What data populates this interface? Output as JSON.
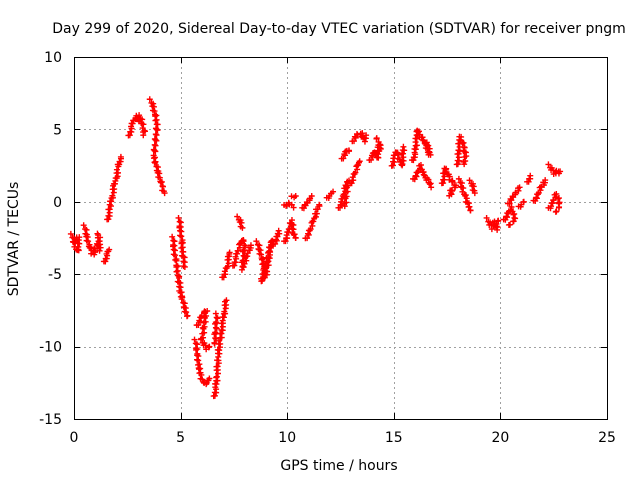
{
  "chart_data": {
    "type": "scatter",
    "title": "Day 299 of 2020, Sidereal Day-to-day VTEC variation (SDTVAR) for receiver pngm",
    "xlabel": "GPS time / hours",
    "ylabel": "SDTVAR / TECUs",
    "xlim": [
      0,
      25
    ],
    "ylim": [
      -15,
      10
    ],
    "xticks": [
      0,
      5,
      10,
      15,
      20,
      25
    ],
    "yticks": [
      -15,
      -10,
      -5,
      0,
      5,
      10
    ],
    "xtick_labels": [
      "0",
      "5",
      "10",
      "15",
      "20",
      "25"
    ],
    "ytick_labels": [
      "-15",
      "-10",
      "-5",
      "0",
      "5",
      "10"
    ],
    "grid": true,
    "marker": "+",
    "color": "#ff0000",
    "series": [
      {
        "name": "SDTVAR",
        "segments": [
          [
            [
              -0.1,
              -2.3
            ],
            [
              0.0,
              -2.8
            ],
            [
              0.1,
              -3.2
            ],
            [
              0.2,
              -3.4
            ],
            [
              0.2,
              -2.4
            ],
            [
              0.1,
              -2.6
            ]
          ],
          [
            [
              0.5,
              -1.7
            ],
            [
              0.6,
              -2.4
            ],
            [
              0.7,
              -3.0
            ],
            [
              0.8,
              -3.4
            ],
            [
              0.9,
              -3.6
            ],
            [
              1.0,
              -3.3
            ],
            [
              1.1,
              -2.9
            ],
            [
              1.2,
              -3.3
            ],
            [
              1.2,
              -2.5
            ],
            [
              1.1,
              -2.2
            ]
          ],
          [
            [
              1.45,
              -4.2
            ],
            [
              1.55,
              -3.6
            ],
            [
              1.65,
              -3.3
            ]
          ],
          [
            [
              1.6,
              -1.3
            ],
            [
              1.7,
              -0.2
            ],
            [
              1.8,
              0.5
            ],
            [
              1.9,
              1.2
            ],
            [
              2.0,
              1.8
            ],
            [
              2.1,
              2.5
            ],
            [
              2.2,
              3.1
            ]
          ],
          [
            [
              2.6,
              4.5
            ],
            [
              2.7,
              5.2
            ],
            [
              2.8,
              5.7
            ],
            [
              2.9,
              5.9
            ],
            [
              3.0,
              5.6
            ],
            [
              3.1,
              5.9
            ],
            [
              3.2,
              5.4
            ],
            [
              3.3,
              5.0
            ],
            [
              3.25,
              4.6
            ]
          ],
          [
            [
              3.6,
              7.0
            ],
            [
              3.7,
              6.6
            ],
            [
              3.8,
              6.1
            ],
            [
              3.9,
              5.3
            ],
            [
              3.75,
              3.1
            ],
            [
              3.85,
              2.6
            ],
            [
              3.95,
              2.0
            ],
            [
              4.05,
              1.5
            ],
            [
              4.15,
              1.0
            ],
            [
              4.25,
              0.6
            ]
          ],
          [
            [
              4.65,
              -2.5
            ],
            [
              4.7,
              -3.3
            ],
            [
              4.8,
              -4.3
            ],
            [
              4.9,
              -5.3
            ],
            [
              5.0,
              -6.2
            ],
            [
              5.1,
              -6.8
            ],
            [
              5.2,
              -7.3
            ],
            [
              5.3,
              -7.9
            ]
          ],
          [
            [
              4.95,
              -1.2
            ],
            [
              5.0,
              -2.0
            ],
            [
              5.05,
              -2.7
            ],
            [
              5.1,
              -3.5
            ],
            [
              5.2,
              -4.5
            ]
          ],
          [
            [
              5.7,
              -9.6
            ],
            [
              5.8,
              -10.6
            ],
            [
              5.85,
              -11.4
            ],
            [
              5.95,
              -12.0
            ],
            [
              6.05,
              -12.4
            ],
            [
              6.15,
              -12.6
            ],
            [
              6.25,
              -12.5
            ],
            [
              6.35,
              -12.2
            ]
          ],
          [
            [
              5.8,
              -8.6
            ],
            [
              5.9,
              -8.2
            ],
            [
              6.0,
              -7.8
            ],
            [
              6.1,
              -7.6
            ],
            [
              6.2,
              -7.5
            ],
            [
              6.0,
              -9.6
            ],
            [
              6.1,
              -9.9
            ],
            [
              6.2,
              -10.1
            ],
            [
              6.35,
              -10.0
            ]
          ],
          [
            [
              6.6,
              -13.5
            ],
            [
              6.65,
              -12.8
            ],
            [
              6.7,
              -12.0
            ],
            [
              6.75,
              -11.0
            ],
            [
              6.8,
              -10.0
            ],
            [
              6.9,
              -9.2
            ],
            [
              7.0,
              -8.2
            ],
            [
              7.05,
              -7.5
            ],
            [
              7.15,
              -6.8
            ]
          ],
          [
            [
              6.7,
              -7.8
            ],
            [
              6.6,
              -9.8
            ]
          ],
          [
            [
              7.0,
              -5.3
            ],
            [
              7.1,
              -4.8
            ],
            [
              7.2,
              -4.4
            ],
            [
              7.25,
              -3.8
            ],
            [
              7.3,
              -3.5
            ]
          ],
          [
            [
              7.5,
              -4.5
            ],
            [
              7.6,
              -3.8
            ],
            [
              7.7,
              -3.3
            ],
            [
              7.8,
              -2.9
            ],
            [
              7.9,
              -2.6
            ],
            [
              8.0,
              -2.8
            ],
            [
              7.9,
              -4.7
            ],
            [
              8.0,
              -4.2
            ],
            [
              8.1,
              -3.8
            ],
            [
              8.2,
              -3.3
            ],
            [
              8.3,
              -3.0
            ]
          ],
          [
            [
              7.7,
              -1.1
            ],
            [
              7.8,
              -1.4
            ],
            [
              7.9,
              -1.8
            ]
          ],
          [
            [
              8.6,
              -2.8
            ],
            [
              8.7,
              -3.3
            ],
            [
              8.8,
              -3.8
            ],
            [
              8.9,
              -4.5
            ],
            [
              9.0,
              -5.0
            ],
            [
              9.1,
              -4.2
            ],
            [
              9.2,
              -3.4
            ],
            [
              9.3,
              -2.6
            ],
            [
              8.8,
              -5.5
            ],
            [
              8.9,
              -5.2
            ],
            [
              9.0,
              -4.8
            ]
          ],
          [
            [
              9.4,
              -3.0
            ],
            [
              9.5,
              -2.6
            ],
            [
              9.6,
              -2.0
            ]
          ],
          [
            [
              9.9,
              -2.8
            ],
            [
              10.0,
              -2.3
            ],
            [
              10.1,
              -1.8
            ],
            [
              10.2,
              -1.3
            ],
            [
              10.3,
              -2.2
            ],
            [
              10.4,
              -2.5
            ]
          ],
          [
            [
              9.9,
              -0.3
            ],
            [
              10.0,
              -0.2
            ],
            [
              10.1,
              -0.1
            ],
            [
              10.3,
              -0.4
            ]
          ],
          [
            [
              10.25,
              0.3
            ],
            [
              10.4,
              0.4
            ]
          ],
          [
            [
              10.75,
              -0.5
            ],
            [
              10.85,
              -0.2
            ],
            [
              10.95,
              0.0
            ],
            [
              11.05,
              0.2
            ],
            [
              11.15,
              0.4
            ]
          ],
          [
            [
              10.9,
              -2.6
            ],
            [
              11.0,
              -2.2
            ],
            [
              11.1,
              -1.8
            ],
            [
              11.2,
              -1.4
            ],
            [
              11.3,
              -1.0
            ],
            [
              11.4,
              -0.6
            ],
            [
              11.5,
              -0.2
            ]
          ],
          [
            [
              11.9,
              0.2
            ],
            [
              12.0,
              0.4
            ],
            [
              12.15,
              0.7
            ]
          ],
          [
            [
              12.45,
              -0.5
            ],
            [
              12.55,
              0.0
            ],
            [
              12.65,
              0.6
            ],
            [
              12.75,
              1.1
            ],
            [
              12.85,
              1.5
            ],
            [
              12.7,
              -0.3
            ]
          ],
          [
            [
              12.6,
              2.9
            ],
            [
              12.7,
              3.3
            ],
            [
              12.8,
              3.6
            ],
            [
              12.9,
              3.5
            ]
          ],
          [
            [
              13.0,
              1.2
            ],
            [
              13.1,
              1.7
            ],
            [
              13.2,
              2.1
            ],
            [
              13.3,
              2.5
            ],
            [
              13.4,
              2.8
            ]
          ],
          [
            [
              13.1,
              4.1
            ],
            [
              13.2,
              4.5
            ],
            [
              13.3,
              4.7
            ],
            [
              13.5,
              4.7
            ],
            [
              13.6,
              4.2
            ],
            [
              13.7,
              4.6
            ]
          ],
          [
            [
              13.9,
              2.8
            ],
            [
              14.0,
              3.2
            ],
            [
              14.1,
              3.5
            ],
            [
              14.25,
              3.0
            ],
            [
              14.3,
              4.0
            ],
            [
              14.4,
              3.6
            ],
            [
              14.2,
              4.4
            ]
          ],
          [
            [
              14.95,
              2.4
            ],
            [
              15.0,
              3.0
            ],
            [
              15.1,
              3.5
            ],
            [
              15.2,
              3.2
            ],
            [
              15.3,
              2.8
            ],
            [
              15.4,
              2.5
            ],
            [
              15.45,
              3.8
            ]
          ],
          [
            [
              15.9,
              2.8
            ],
            [
              16.0,
              3.4
            ],
            [
              16.1,
              5.0
            ],
            [
              16.2,
              4.6
            ],
            [
              16.3,
              4.5
            ],
            [
              16.4,
              4.2
            ],
            [
              16.5,
              4.0
            ],
            [
              16.6,
              3.5
            ],
            [
              16.7,
              3.2
            ],
            [
              16.55,
              4.1
            ]
          ],
          [
            [
              15.95,
              1.5
            ],
            [
              16.05,
              1.8
            ],
            [
              16.15,
              2.2
            ],
            [
              16.25,
              2.5
            ],
            [
              16.35,
              2.1
            ],
            [
              16.45,
              1.8
            ],
            [
              16.55,
              1.5
            ],
            [
              16.65,
              1.4
            ],
            [
              16.75,
              1.0
            ]
          ],
          [
            [
              17.3,
              1.2
            ],
            [
              17.4,
              2.3
            ],
            [
              17.5,
              2.0
            ],
            [
              17.6,
              1.7
            ],
            [
              17.7,
              1.5
            ],
            [
              17.8,
              1.3
            ],
            [
              17.9,
              1.0
            ],
            [
              17.6,
              0.5
            ],
            [
              17.7,
              0.8
            ]
          ],
          [
            [
              18.0,
              2.5
            ],
            [
              18.1,
              4.5
            ],
            [
              18.2,
              4.2
            ],
            [
              18.3,
              3.7
            ],
            [
              18.35,
              3.2
            ],
            [
              18.3,
              2.6
            ]
          ],
          [
            [
              18.1,
              1.5
            ],
            [
              18.2,
              1.0
            ],
            [
              18.3,
              0.6
            ],
            [
              18.4,
              0.2
            ],
            [
              18.5,
              -0.3
            ],
            [
              18.6,
              -0.6
            ]
          ],
          [
            [
              18.6,
              1.4
            ],
            [
              18.7,
              1.1
            ],
            [
              18.8,
              0.6
            ]
          ],
          [
            [
              19.4,
              -1.2
            ],
            [
              19.5,
              -1.6
            ],
            [
              19.6,
              -1.8
            ],
            [
              19.7,
              -1.4
            ],
            [
              19.8,
              -1.9
            ],
            [
              19.9,
              -1.3
            ]
          ],
          [
            [
              20.2,
              -1.3
            ],
            [
              20.3,
              -1.0
            ],
            [
              20.4,
              -0.6
            ],
            [
              20.5,
              -0.4
            ],
            [
              20.6,
              -0.8
            ],
            [
              20.7,
              -1.2
            ],
            [
              20.4,
              -1.6
            ]
          ],
          [
            [
              20.4,
              -0.2
            ],
            [
              20.5,
              0.2
            ],
            [
              20.6,
              0.4
            ],
            [
              20.7,
              0.6
            ],
            [
              20.8,
              0.8
            ],
            [
              20.9,
              1.0
            ]
          ],
          [
            [
              20.9,
              -0.4
            ],
            [
              21.0,
              -0.2
            ],
            [
              21.1,
              0.0
            ]
          ],
          [
            [
              21.3,
              1.3
            ],
            [
              21.4,
              1.8
            ]
          ],
          [
            [
              21.6,
              0.0
            ],
            [
              21.7,
              0.3
            ],
            [
              21.8,
              0.7
            ],
            [
              21.9,
              1.0
            ],
            [
              22.0,
              1.2
            ],
            [
              22.1,
              1.5
            ]
          ],
          [
            [
              22.3,
              2.5
            ],
            [
              22.4,
              2.2
            ],
            [
              22.5,
              2.0
            ],
            [
              22.6,
              2.1
            ],
            [
              22.7,
              2.0
            ],
            [
              22.8,
              2.1
            ]
          ],
          [
            [
              22.3,
              -0.5
            ],
            [
              22.4,
              -0.3
            ],
            [
              22.5,
              0.2
            ],
            [
              22.6,
              0.5
            ],
            [
              22.7,
              0.3
            ],
            [
              22.8,
              -0.2
            ],
            [
              22.6,
              -0.7
            ]
          ]
        ]
      }
    ]
  }
}
